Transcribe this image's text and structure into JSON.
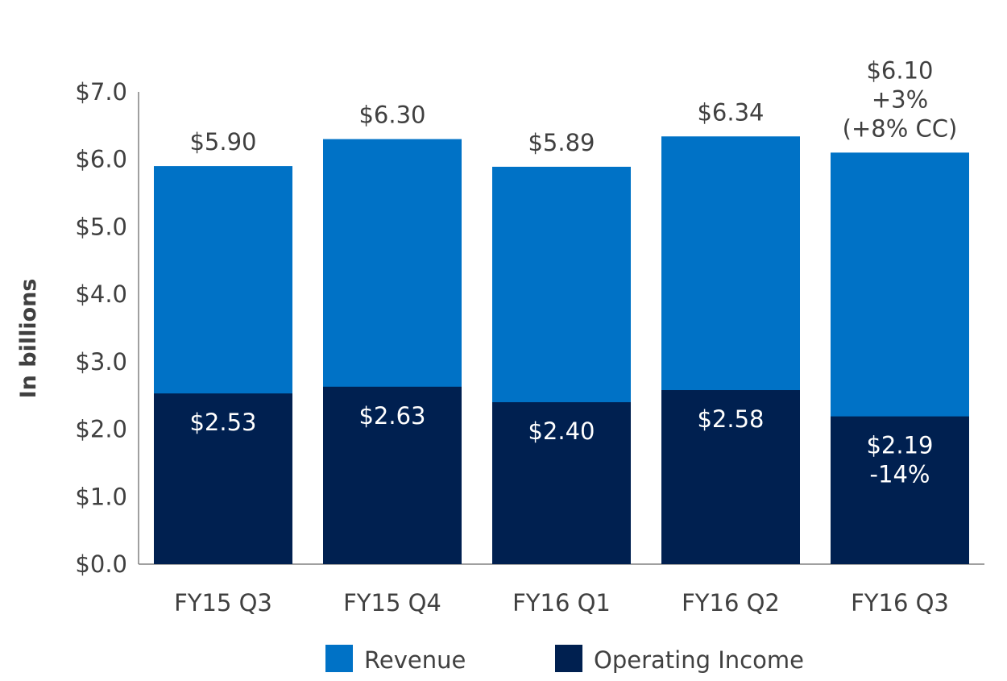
{
  "chart_data": {
    "type": "bar",
    "stacked": false,
    "overlapped": true,
    "categories": [
      "FY15 Q3",
      "FY15 Q4",
      "FY16 Q1",
      "FY16 Q2",
      "FY16 Q3"
    ],
    "series": [
      {
        "name": "Revenue",
        "values": [
          5.9,
          6.3,
          5.89,
          6.34,
          6.1
        ],
        "labels": [
          [
            "$5.90"
          ],
          [
            "$6.30"
          ],
          [
            "$5.89"
          ],
          [
            "$6.34"
          ],
          [
            "$6.10",
            "+3%",
            "(+8% CC)"
          ]
        ]
      },
      {
        "name": "Operating Income",
        "values": [
          2.53,
          2.63,
          2.4,
          2.58,
          2.19
        ],
        "labels": [
          [
            "$2.53"
          ],
          [
            "$2.63"
          ],
          [
            "$2.40"
          ],
          [
            "$2.58"
          ],
          [
            "$2.19",
            "-14%"
          ]
        ]
      }
    ],
    "ylabel": "In billions",
    "ylim": [
      0,
      7
    ],
    "yticks": [
      0,
      1,
      2,
      3,
      4,
      5,
      6,
      7
    ],
    "ytick_labels": [
      "$0.0",
      "$1.0",
      "$2.0",
      "$3.0",
      "$4.0",
      "$5.0",
      "$6.0",
      "$7.0"
    ],
    "grid": false,
    "legend": "bottom"
  },
  "colors": {
    "revenue": "#0072C6",
    "operating_income": "#002050",
    "axis": "#808080"
  }
}
